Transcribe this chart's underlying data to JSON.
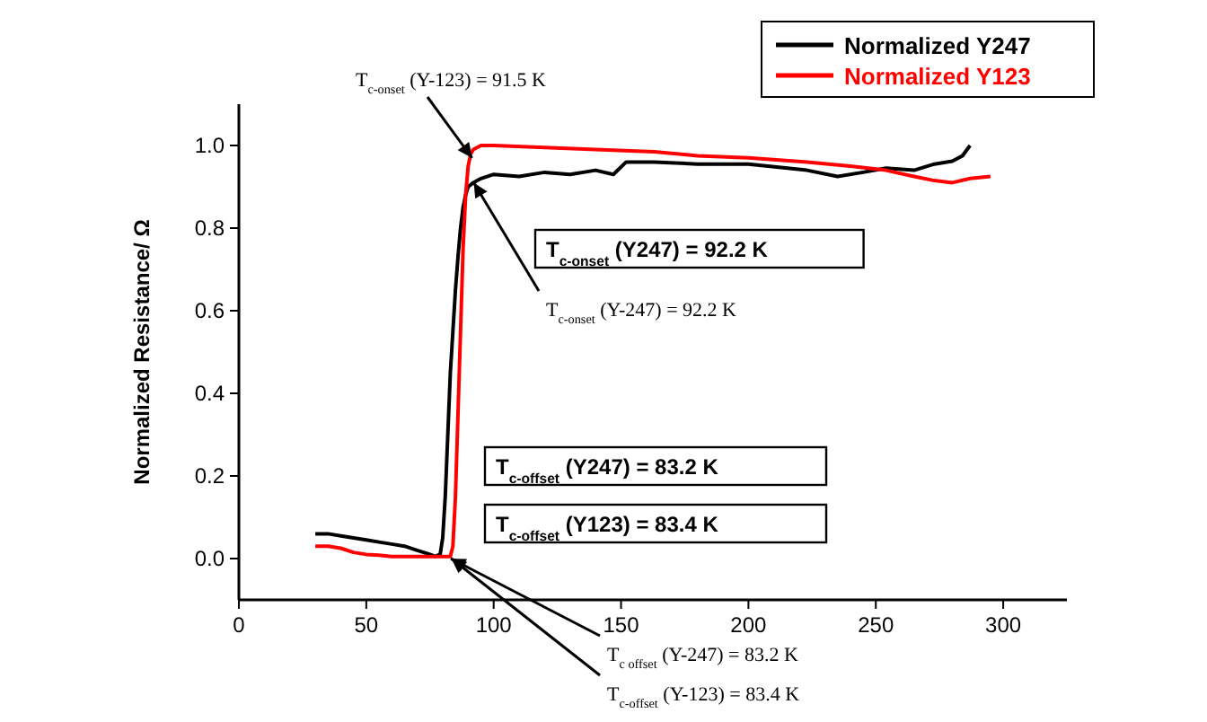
{
  "chart_data": {
    "type": "line",
    "ylabel": "Normalized Resistance/ Ω",
    "xlim": [
      0,
      325
    ],
    "ylim": [
      -0.1,
      1.1
    ],
    "xticks": [
      0,
      50,
      100,
      150,
      200,
      250,
      300
    ],
    "yticks": [
      {
        "value": 0,
        "label": "0.0"
      },
      0.2,
      0.4,
      0.6,
      0.8,
      {
        "value": 1,
        "label": "1.0"
      }
    ],
    "legend": "top right",
    "grid": false,
    "marker": "none",
    "line_style": "solid",
    "series": [
      {
        "name": "Normalized Y247",
        "color": "#000000",
        "x": [
          30,
          35,
          40,
          45,
          50,
          55,
          60,
          65,
          70,
          75,
          77,
          79,
          80,
          81,
          82,
          83,
          84,
          85,
          86,
          87,
          88,
          89,
          90,
          92,
          95,
          100,
          110,
          120,
          130,
          140,
          147,
          152,
          163,
          180,
          200,
          223,
          235,
          245,
          254,
          265,
          273,
          280,
          284,
          287
        ],
        "values": [
          0.06,
          0.06,
          0.055,
          0.05,
          0.045,
          0.04,
          0.035,
          0.03,
          0.02,
          0.01,
          0.005,
          0.01,
          0.05,
          0.15,
          0.3,
          0.45,
          0.55,
          0.65,
          0.73,
          0.8,
          0.85,
          0.88,
          0.9,
          0.91,
          0.92,
          0.93,
          0.925,
          0.935,
          0.93,
          0.94,
          0.93,
          0.96,
          0.96,
          0.955,
          0.955,
          0.94,
          0.925,
          0.935,
          0.945,
          0.94,
          0.955,
          0.962,
          0.975,
          1.0
        ]
      },
      {
        "name": "Normalized Y123",
        "color": "#ff0000",
        "x": [
          30,
          35,
          40,
          45,
          50,
          55,
          60,
          65,
          70,
          75,
          80,
          83,
          84,
          85,
          86,
          87,
          88,
          89,
          90,
          91,
          92,
          95,
          100,
          120,
          140,
          163,
          180,
          200,
          223,
          240,
          254,
          265,
          273,
          280,
          287,
          295
        ],
        "values": [
          0.03,
          0.03,
          0.025,
          0.015,
          0.01,
          0.008,
          0.005,
          0.005,
          0.005,
          0.005,
          0.005,
          0.005,
          0.03,
          0.15,
          0.35,
          0.55,
          0.75,
          0.88,
          0.95,
          0.98,
          0.99,
          1.0,
          1.0,
          0.995,
          0.99,
          0.985,
          0.975,
          0.97,
          0.96,
          0.95,
          0.94,
          0.925,
          0.915,
          0.91,
          0.92,
          0.925
        ]
      }
    ],
    "annotations": [
      {
        "text": "T$_{c-onset}$ (Y-123) = 91.5 K",
        "x": 91.5,
        "y": 0.97
      },
      "T$_{c-onset}$ (Y247) = 92.2 K",
      {
        "text": "T$_{c-onset}$ (Y-247) = 92.2 K",
        "x": 92.2,
        "y": 0.91
      },
      "T$_{c-offset}$ (Y247) = 83.2 K",
      "T$_{c-offset}$ (Y123) = 83.4 K",
      {
        "text": "T$_{c offset}$ (Y-247) = 83.2 K",
        "x": 83.2,
        "y": 0
      },
      {
        "text": "T$_{c-offset}$ (Y-123) = 83.4 K",
        "x": 83.4,
        "y": 0
      }
    ]
  }
}
